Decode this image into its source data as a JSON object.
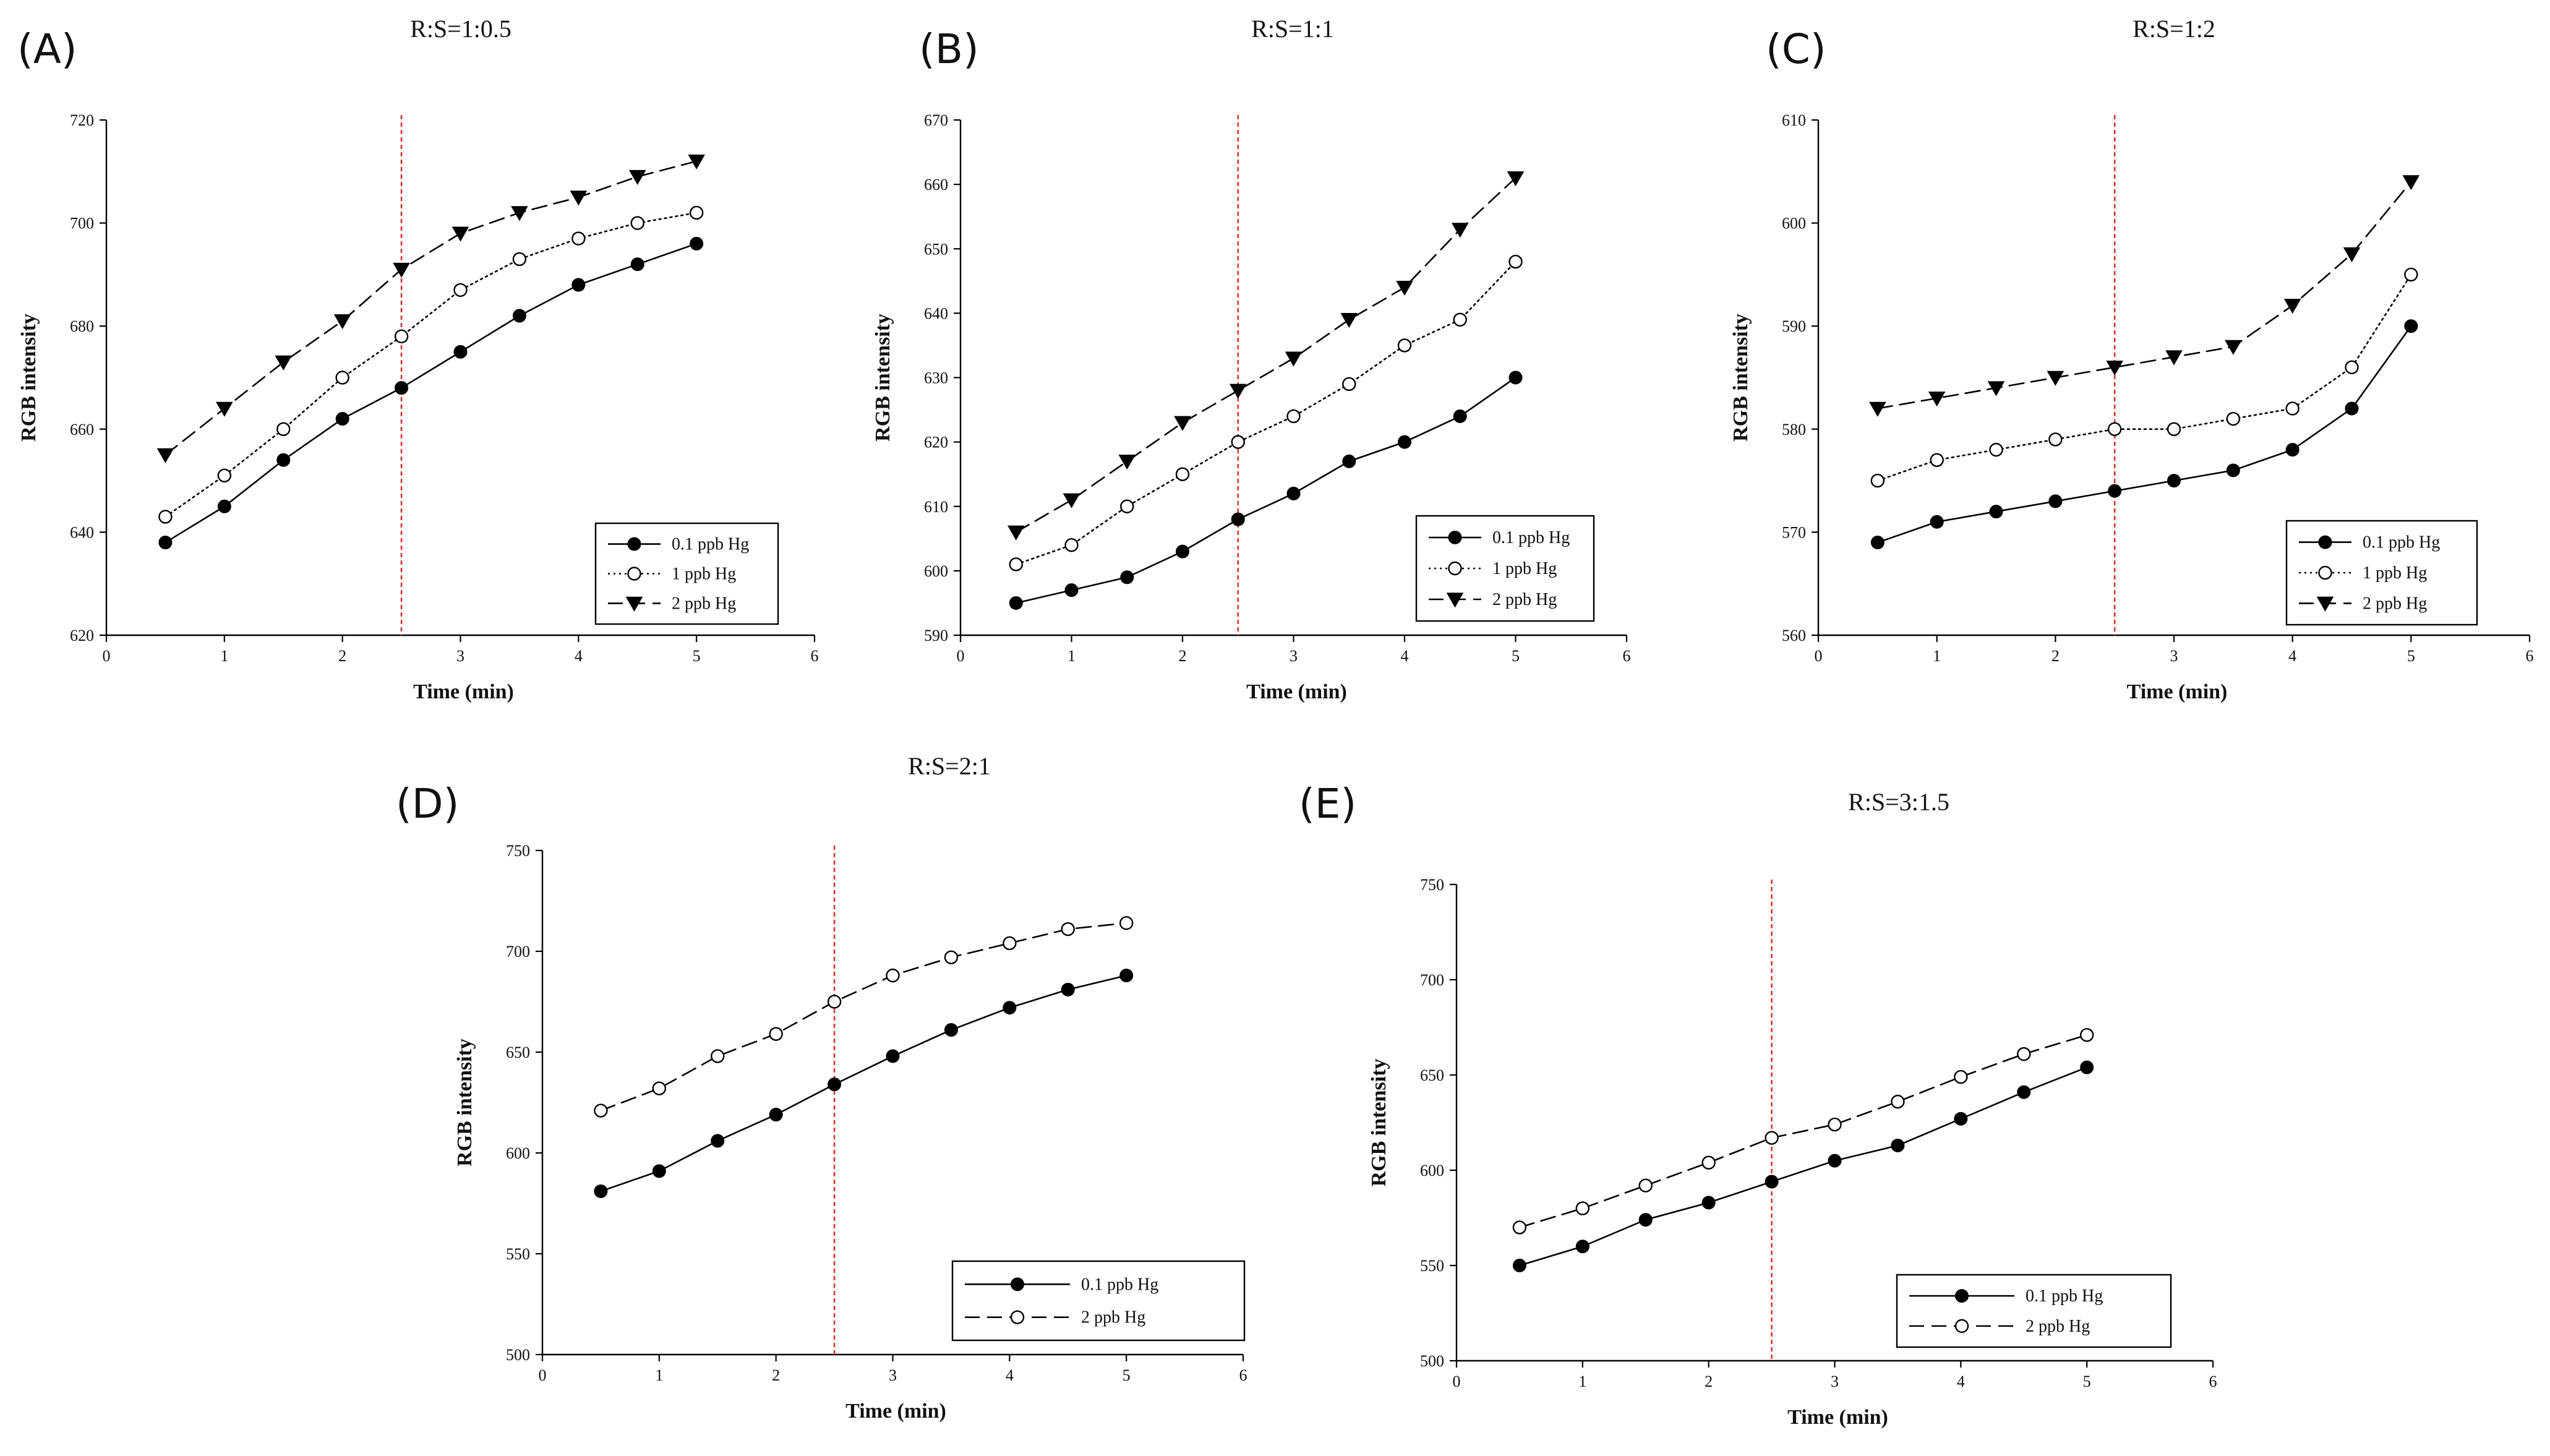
{
  "colors": {
    "axis": "#000000",
    "series": "#000000",
    "marker_line": "#d9362c",
    "background": "#ffffff"
  },
  "chart_data": [
    {
      "type": "line",
      "panel_label": "(A)",
      "title": "R:S=1:0.5",
      "xlabel": "Time (min)",
      "ylabel": "RGB intensity",
      "xlim": [
        0,
        6
      ],
      "ylim": [
        620,
        720
      ],
      "x_ticks": [
        "0",
        "1",
        "2",
        "3",
        "4",
        "5",
        "6"
      ],
      "y_ticks": [
        "620",
        "640",
        "660",
        "680",
        "700",
        "720"
      ],
      "vertical_line_x": 2.5,
      "legend_position": "lower-right",
      "x": [
        0.5,
        1,
        1.5,
        2,
        2.5,
        3,
        3.5,
        4,
        4.5,
        5
      ],
      "series": [
        {
          "name": "0.1 ppb Hg",
          "marker": "filled-circle",
          "line": "solid",
          "values": [
            638,
            645,
            654,
            662,
            668,
            675,
            682,
            688,
            692,
            696
          ]
        },
        {
          "name": "1 ppb Hg",
          "marker": "open-circle",
          "line": "dotted",
          "values": [
            643,
            651,
            660,
            670,
            678,
            687,
            693,
            697,
            700,
            702
          ]
        },
        {
          "name": "2 ppb Hg",
          "marker": "filled-triangle-down",
          "line": "dashed",
          "values": [
            655,
            664,
            673,
            681,
            691,
            698,
            702,
            705,
            709,
            712
          ]
        }
      ]
    },
    {
      "type": "line",
      "panel_label": "(B)",
      "title": "R:S=1:1",
      "xlabel": "Time (min)",
      "ylabel": "RGB intensity",
      "xlim": [
        0,
        6
      ],
      "ylim": [
        590,
        670
      ],
      "x_ticks": [
        "0",
        "1",
        "2",
        "3",
        "4",
        "5",
        "6"
      ],
      "y_ticks": [
        "590",
        "600",
        "610",
        "620",
        "630",
        "640",
        "650",
        "660",
        "670"
      ],
      "vertical_line_x": 2.5,
      "legend_position": "lower-right",
      "x": [
        0.5,
        1,
        1.5,
        2,
        2.5,
        3,
        3.5,
        4,
        4.5,
        5
      ],
      "series": [
        {
          "name": "0.1 ppb Hg",
          "marker": "filled-circle",
          "line": "solid",
          "values": [
            595,
            597,
            599,
            603,
            608,
            612,
            617,
            620,
            624,
            630
          ]
        },
        {
          "name": "1 ppb Hg",
          "marker": "open-circle",
          "line": "dotted",
          "values": [
            601,
            604,
            610,
            615,
            620,
            624,
            629,
            635,
            639,
            648
          ]
        },
        {
          "name": "2 ppb Hg",
          "marker": "filled-triangle-down",
          "line": "dashed",
          "values": [
            606,
            611,
            617,
            623,
            628,
            633,
            639,
            644,
            653,
            661
          ]
        }
      ]
    },
    {
      "type": "line",
      "panel_label": "(C)",
      "title": "R:S=1:2",
      "xlabel": "Time (min)",
      "ylabel": "RGB intensity",
      "xlim": [
        0,
        6
      ],
      "ylim": [
        560,
        610
      ],
      "x_ticks": [
        "0",
        "1",
        "2",
        "3",
        "4",
        "5",
        "6"
      ],
      "y_ticks": [
        "560",
        "570",
        "580",
        "590",
        "600",
        "610"
      ],
      "vertical_line_x": 2.5,
      "legend_position": "lower-right",
      "x": [
        0.5,
        1,
        1.5,
        2,
        2.5,
        3,
        3.5,
        4,
        4.5,
        5
      ],
      "series": [
        {
          "name": "0.1 ppb Hg",
          "marker": "filled-circle",
          "line": "solid",
          "values": [
            569,
            571,
            572,
            573,
            574,
            575,
            576,
            578,
            582,
            590
          ]
        },
        {
          "name": "1 ppb Hg",
          "marker": "open-circle",
          "line": "dotted",
          "values": [
            575,
            577,
            578,
            579,
            580,
            580,
            581,
            582,
            586,
            595
          ]
        },
        {
          "name": "2 ppb Hg",
          "marker": "filled-triangle-down",
          "line": "dashed",
          "values": [
            582,
            583,
            584,
            585,
            586,
            587,
            588,
            592,
            597,
            604
          ]
        }
      ]
    },
    {
      "type": "line",
      "panel_label": "(D)",
      "title": "R:S=2:1",
      "xlabel": "Time (min)",
      "ylabel": "RGB intensity",
      "xlim": [
        0,
        6
      ],
      "ylim": [
        500,
        750
      ],
      "x_ticks": [
        "0",
        "1",
        "2",
        "3",
        "4",
        "5",
        "6"
      ],
      "y_ticks": [
        "500",
        "550",
        "600",
        "650",
        "700",
        "750"
      ],
      "vertical_line_x": 2.5,
      "legend_position": "lower-right",
      "x": [
        0.5,
        1,
        1.5,
        2,
        2.5,
        3,
        3.5,
        4,
        4.5,
        5
      ],
      "series": [
        {
          "name": "0.1 ppb Hg",
          "marker": "filled-circle",
          "line": "solid",
          "values": [
            581,
            591,
            606,
            619,
            634,
            648,
            661,
            672,
            681,
            688
          ]
        },
        {
          "name": "2 ppb Hg",
          "marker": "open-circle",
          "line": "dashed",
          "values": [
            621,
            632,
            648,
            659,
            675,
            688,
            697,
            704,
            711,
            714
          ]
        }
      ]
    },
    {
      "type": "line",
      "panel_label": "(E)",
      "title": "R:S=3:1.5",
      "xlabel": "Time (min)",
      "ylabel": "RGB intensity",
      "xlim": [
        0,
        6
      ],
      "ylim": [
        500,
        750
      ],
      "x_ticks": [
        "0",
        "1",
        "2",
        "3",
        "4",
        "5",
        "6"
      ],
      "y_ticks": [
        "500",
        "550",
        "600",
        "650",
        "700",
        "750"
      ],
      "vertical_line_x": 2.5,
      "legend_position": "lower-right",
      "x": [
        0.5,
        1,
        1.5,
        2,
        2.5,
        3,
        3.5,
        4,
        4.5,
        5
      ],
      "series": [
        {
          "name": "0.1 ppb Hg",
          "marker": "filled-circle",
          "line": "solid",
          "values": [
            550,
            560,
            574,
            583,
            594,
            605,
            613,
            627,
            641,
            654
          ]
        },
        {
          "name": "2 ppb Hg",
          "marker": "open-circle",
          "line": "dashed",
          "values": [
            570,
            580,
            592,
            604,
            617,
            624,
            636,
            649,
            661,
            671
          ]
        }
      ]
    }
  ]
}
